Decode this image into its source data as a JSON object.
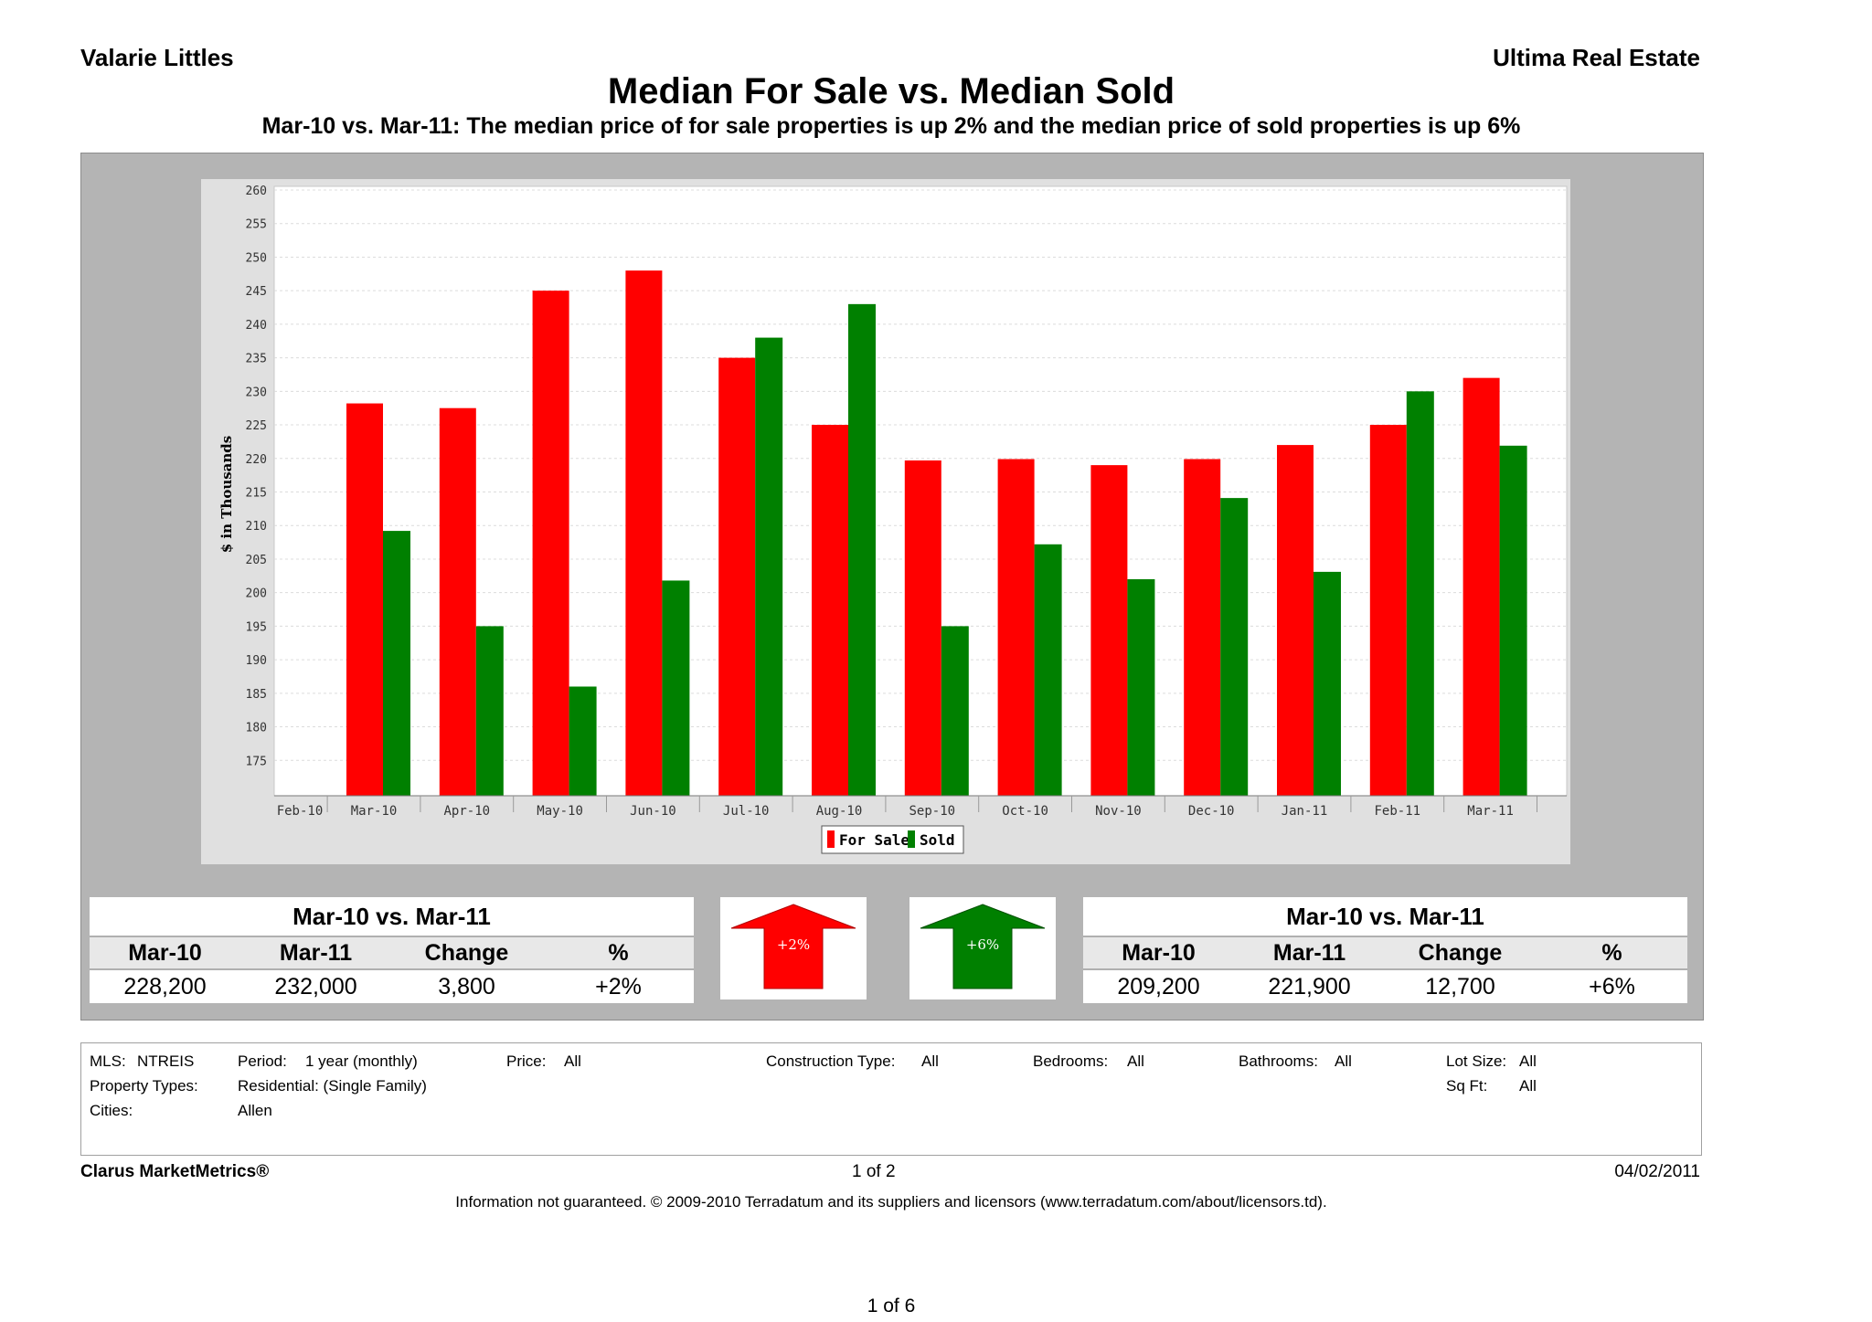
{
  "header": {
    "agent_name": "Valarie Littles",
    "brokerage": "Ultima Real Estate",
    "title": "Median For Sale vs. Median Sold",
    "subtitle": "Mar-10 vs. Mar-11:  The median price of for sale properties is up 2% and the median price of sold properties is up 6%"
  },
  "chart_data": {
    "type": "bar",
    "title": "Median For Sale vs. Median Sold",
    "xlabel": "",
    "ylabel": "$ in Thousands",
    "ylim": [
      170,
      260
    ],
    "yticks": [
      175,
      180,
      185,
      190,
      195,
      200,
      205,
      210,
      215,
      220,
      225,
      230,
      235,
      240,
      245,
      250,
      255,
      260
    ],
    "grid": true,
    "legend": "bottom-center",
    "axis_start_label": "Feb-10",
    "categories": [
      "Mar-10",
      "Apr-10",
      "May-10",
      "Jun-10",
      "Jul-10",
      "Aug-10",
      "Sep-10",
      "Oct-10",
      "Nov-10",
      "Dec-10",
      "Jan-11",
      "Feb-11",
      "Mar-11"
    ],
    "series": [
      {
        "name": "For Sale",
        "color": "#ff0000",
        "values": [
          228.2,
          227.5,
          245,
          248,
          235,
          225,
          219.7,
          219.9,
          219,
          219.9,
          222,
          225,
          232
        ]
      },
      {
        "name": "Sold",
        "color": "#008000",
        "values": [
          209.2,
          195,
          186,
          201.8,
          238,
          243,
          195,
          207.2,
          202,
          214.1,
          203.1,
          230,
          221.9
        ]
      }
    ]
  },
  "for_sale_summary": {
    "heading": "Mar-10 vs. Mar-11",
    "columns": [
      "Mar-10",
      "Mar-11",
      "Change",
      "%"
    ],
    "values": [
      "228,200",
      "232,000",
      "3,800",
      "+2%"
    ],
    "arrow_label": "+2%",
    "arrow_color": "#ff0000"
  },
  "sold_summary": {
    "heading": "Mar-10 vs. Mar-11",
    "columns": [
      "Mar-10",
      "Mar-11",
      "Change",
      "%"
    ],
    "values": [
      "209,200",
      "221,900",
      "12,700",
      "+6%"
    ],
    "arrow_label": "+6%",
    "arrow_color": "#008000"
  },
  "filters": {
    "mls_label": "MLS:",
    "mls_value": "NTREIS",
    "period_label": "Period:",
    "period_value": "1 year (monthly)",
    "price_label": "Price:",
    "price_value": "All",
    "construction_label": "Construction Type:",
    "construction_value": "All",
    "bedrooms_label": "Bedrooms:",
    "bedrooms_value": "All",
    "bathrooms_label": "Bathrooms:",
    "bathrooms_value": "All",
    "lotsize_label": "Lot Size:",
    "lotsize_value": "All",
    "property_types_label": "Property Types:",
    "property_types_value": "Residential: (Single Family)",
    "sqft_label": "Sq Ft:",
    "sqft_value": "All",
    "cities_label": "Cities:",
    "cities_value": "Allen"
  },
  "footer": {
    "brand": "Clarus MarketMetrics®",
    "page": "1 of 2",
    "date": "04/02/2011",
    "disclaimer": "Information not guaranteed.  © 2009-2010 Terradatum and its suppliers and licensors (www.terradatum.com/about/licensors.td).",
    "doc_page": "1 of 6"
  }
}
